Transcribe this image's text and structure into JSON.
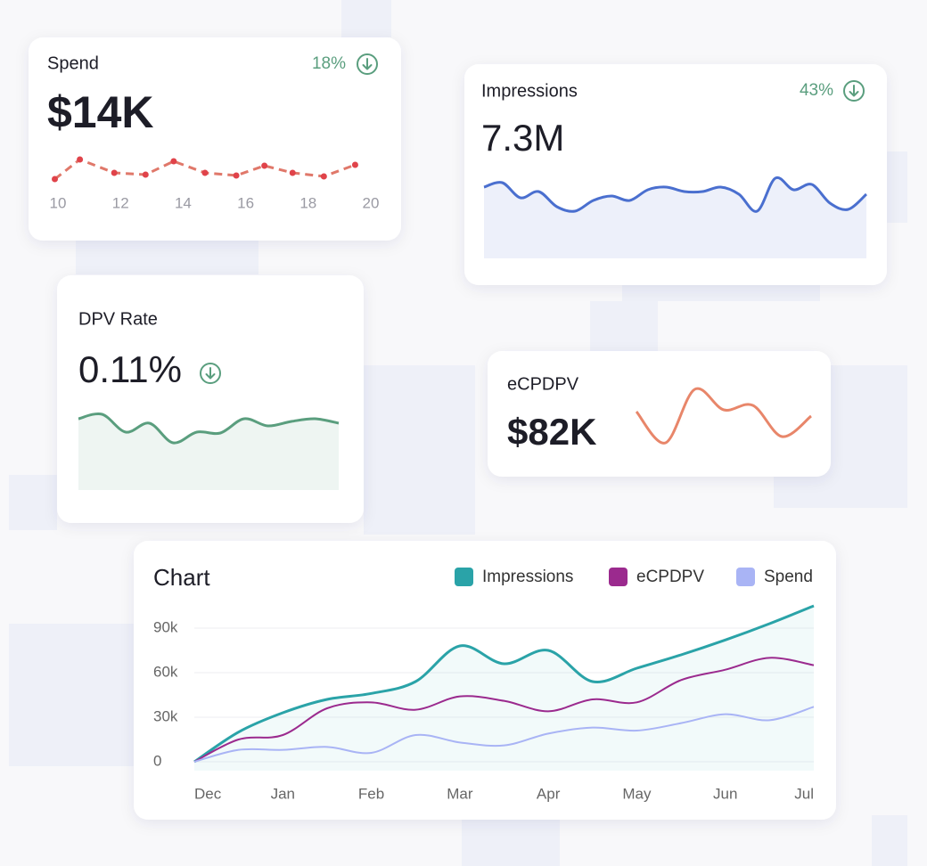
{
  "cards": [
    {
      "title": "Spend",
      "value": "$14K",
      "change": "18%",
      "chart": {
        "type": "dots",
        "color": "#e0786a",
        "x": [
          9.9,
          10.7,
          11.8,
          12.8,
          13.7,
          14.7,
          15.7,
          16.6,
          17.5,
          18.5,
          19.5
        ],
        "values": [
          9,
          31,
          16,
          14,
          29,
          16,
          13,
          24,
          16,
          12,
          25
        ],
        "xlim": [
          9.8,
          20.2
        ],
        "xticks": [
          10,
          12,
          14,
          16,
          18,
          20
        ],
        "ylim": [
          0,
          40
        ]
      }
    },
    {
      "title": "Impressions",
      "value": "7.3M",
      "change": "43%",
      "chart": {
        "type": "area",
        "color": "#4a6fcf",
        "values": [
          80,
          85,
          68,
          75,
          58,
          53,
          65,
          70,
          65,
          77,
          80,
          75,
          75,
          80,
          72,
          53,
          90,
          77,
          83,
          62,
          55,
          72
        ],
        "ylim": [
          0,
          110
        ]
      }
    },
    {
      "title": "DPV Rate",
      "value": "0.11%",
      "chart": {
        "type": "area",
        "color": "#5a9e7e",
        "values": [
          80,
          85,
          65,
          75,
          53,
          65,
          64,
          80,
          72,
          77,
          80,
          75
        ],
        "ylim": [
          0,
          100
        ]
      }
    },
    {
      "title": "eCPDPV",
      "value": "$82K",
      "chart": {
        "type": "line",
        "color": "#e8866a",
        "values": [
          48,
          13,
          73,
          50,
          55,
          20,
          43
        ],
        "ylim": [
          0,
          100
        ]
      }
    }
  ],
  "chart_data": {
    "type": "line",
    "title": "Chart",
    "x": [
      0,
      0.5,
      1,
      1.5,
      2,
      2.5,
      3,
      3.5,
      4,
      4.5,
      5,
      5.5,
      6,
      6.5,
      7
    ],
    "series": [
      {
        "name": "Impressions",
        "color": "#2aa3a8",
        "area": true,
        "values": [
          0,
          20000,
          33000,
          42000,
          46000,
          54000,
          78000,
          66000,
          75000,
          54000,
          63000,
          72000,
          82000,
          93000,
          105000
        ]
      },
      {
        "name": "eCPDPV",
        "color": "#9b2a8e",
        "values": [
          0,
          15000,
          18000,
          36000,
          40000,
          35000,
          44000,
          41000,
          34000,
          42000,
          40000,
          55000,
          62000,
          70000,
          65000
        ]
      },
      {
        "name": "Spend",
        "color": "#a9b4f5",
        "values": [
          0,
          8000,
          8000,
          10000,
          6000,
          18000,
          13000,
          11000,
          19000,
          23000,
          21000,
          26000,
          32000,
          28000,
          37000
        ]
      }
    ],
    "xlim": [
      0,
      7
    ],
    "xticks": [
      {
        "value": 0,
        "label": "Dec"
      },
      {
        "value": 1,
        "label": "Jan"
      },
      {
        "value": 2,
        "label": "Feb"
      },
      {
        "value": 3,
        "label": "Mar"
      },
      {
        "value": 4,
        "label": "Apr"
      },
      {
        "value": 5,
        "label": "May"
      },
      {
        "value": 6,
        "label": "Jun"
      },
      {
        "value": 7,
        "label": "Jul"
      }
    ],
    "ylim": [
      -6000,
      105000
    ],
    "yticks": [
      0,
      {
        "value": 30000,
        "label": "30k"
      },
      {
        "value": 60000,
        "label": "60k"
      },
      {
        "value": 90000,
        "label": "90k"
      }
    ],
    "grid": true
  }
}
